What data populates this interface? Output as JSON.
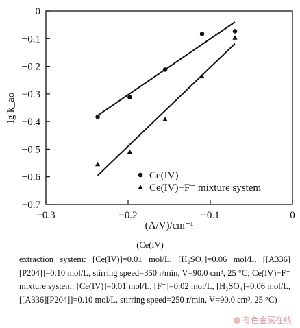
{
  "chart_data": {
    "type": "scatter",
    "xlabel": "(A/V)/cm⁻¹",
    "ylabel": "lg k_ao",
    "xlim": [
      -0.3,
      0
    ],
    "ylim": [
      -0.7,
      0
    ],
    "xticks": [
      -0.3,
      -0.2,
      -0.1,
      0
    ],
    "xtick_labels": [
      "−0.3",
      "−0.2",
      "−0.1",
      "0"
    ],
    "yticks": [
      0,
      -0.1,
      -0.2,
      -0.3,
      -0.4,
      -0.5,
      -0.6,
      -0.7
    ],
    "ytick_labels": [
      "0",
      "−0.1",
      "−0.2",
      "−0.3",
      "−0.4",
      "−0.5",
      "−0.6",
      "−0.7"
    ],
    "grid": false,
    "legend_position": "bottom-right",
    "series": [
      {
        "name": "Ce(IV)",
        "marker": "circle",
        "x": [
          -0.237,
          -0.198,
          -0.155,
          -0.11,
          -0.07
        ],
        "y": [
          -0.383,
          -0.312,
          -0.212,
          -0.083,
          -0.073
        ],
        "fit_line": {
          "x": [
            -0.237,
            -0.07
          ],
          "y": [
            -0.378,
            -0.04
          ]
        }
      },
      {
        "name": "Ce(IV)−F⁻ mixture system",
        "marker": "triangle",
        "x": [
          -0.237,
          -0.198,
          -0.155,
          -0.11,
          -0.07
        ],
        "y": [
          -0.555,
          -0.51,
          -0.392,
          -0.237,
          -0.097
        ],
        "fit_line": {
          "x": [
            -0.237,
            -0.07
          ],
          "y": [
            -0.595,
            -0.118
          ]
        }
      }
    ]
  },
  "caption": {
    "heading": "(Ce(IV)",
    "body": "extraction system: [Ce(IV)]=0.01 mol/L, [H₂SO₄]=0.06 mol/L, [[A336][P204]]=0.10 mol/L, stirring speed=350 r/min, V=90.0 cm³, 25 °C; Ce(IV)−F⁻ mixture system: [Ce(IV)]=0.01 mol/L, [F⁻]=0.02 mol/L, [H₂SO₄]=0.06 mol/L, [[A336][P204]]=0.10 mol/L, stirring speed=250 r/min, V=90.0 cm³, 25 °C)"
  },
  "watermark": "有色金属在线"
}
